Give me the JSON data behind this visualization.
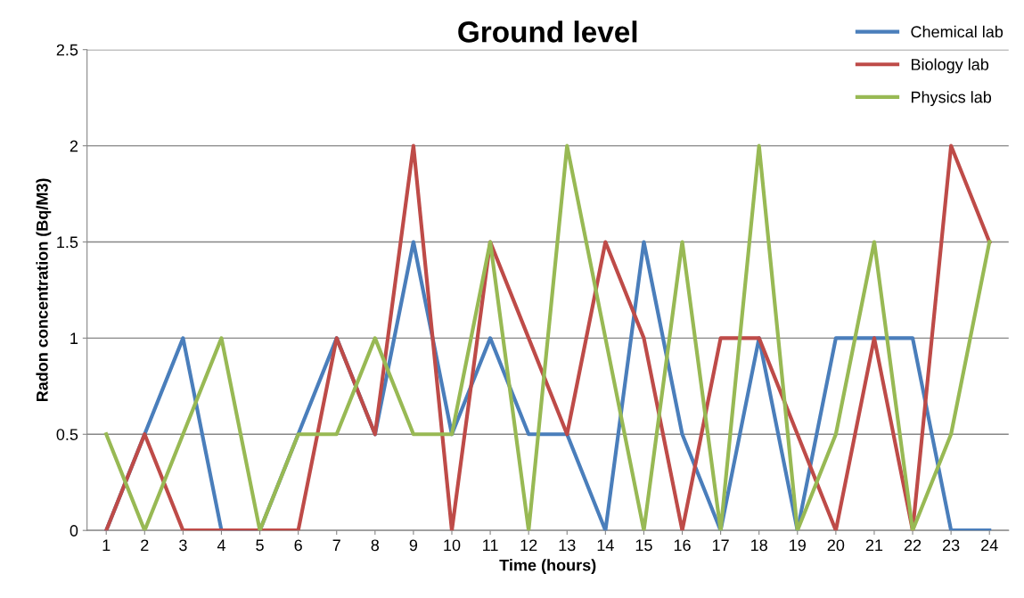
{
  "chart_data": {
    "type": "line",
    "title": "Ground level",
    "xlabel": "Time (hours)",
    "ylabel": "Radon concentration (Bq/M3)",
    "categories": [
      "1",
      "2",
      "3",
      "4",
      "5",
      "6",
      "7",
      "8",
      "9",
      "10",
      "11",
      "12",
      "13",
      "14",
      "15",
      "16",
      "17",
      "18",
      "19",
      "20",
      "21",
      "22",
      "23",
      "24"
    ],
    "series": [
      {
        "name": "Chemical lab",
        "color": "#4a7ebb",
        "values": [
          0,
          0.5,
          1,
          0,
          0,
          0.5,
          1,
          0.5,
          1.5,
          0.5,
          1,
          0.5,
          0.5,
          0,
          1.5,
          0.5,
          0,
          1,
          0,
          1,
          1,
          1,
          0,
          0
        ]
      },
      {
        "name": "Biology lab",
        "color": "#be4b48",
        "values": [
          0,
          0.5,
          0,
          0,
          0,
          0,
          1,
          0.5,
          2,
          0,
          1.5,
          1,
          0.5,
          1.5,
          1,
          0,
          1,
          1,
          0.5,
          0,
          1,
          0,
          2,
          1.5
        ]
      },
      {
        "name": "Physics lab",
        "color": "#98b954",
        "values": [
          0.5,
          0,
          0.5,
          1,
          0,
          0.5,
          0.5,
          1,
          0.5,
          0.5,
          1.5,
          0,
          2,
          1,
          0,
          1.5,
          0,
          2,
          0,
          0.5,
          1.5,
          0,
          0.5,
          1.5
        ]
      }
    ],
    "ylim": [
      0,
      2.5
    ],
    "yticks": [
      0,
      0.5,
      1,
      1.5,
      2,
      2.5
    ],
    "grid": "y",
    "legend": "top right",
    "marker": "none",
    "line_style": "solid"
  }
}
